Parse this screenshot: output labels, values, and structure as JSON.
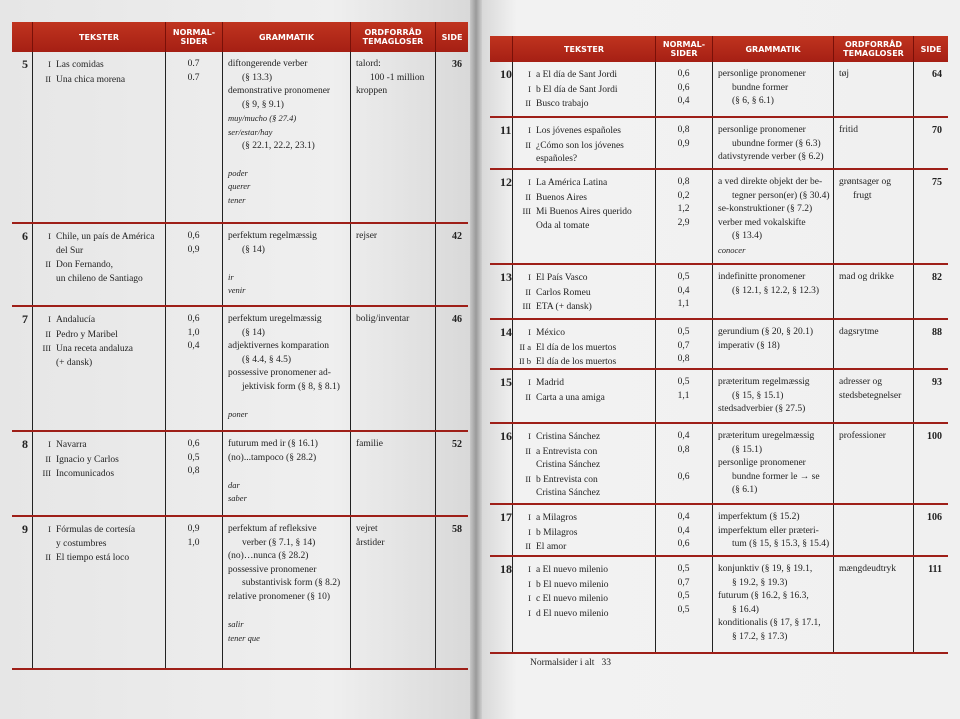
{
  "headers": {
    "tekster": "TEKSTER",
    "normal": "NORMAL-\nSIDER",
    "grammatik": "GRAMMATIK",
    "ordforrad": "ORDFORRÅD\nTEMAGLOSER",
    "side": "SIDE"
  },
  "left_rows": [
    {
      "num": "5",
      "texts": [
        [
          "I",
          "Las comidas"
        ],
        [
          "II",
          "Una chica morena"
        ]
      ],
      "normal": [
        "0.7",
        "0.7"
      ],
      "grammar": [
        {
          "t": "diftongerende verber"
        },
        {
          "t": "(§ 13.3)",
          "ind": true
        },
        {
          "t": "demonstrative pronomener"
        },
        {
          "t": "(§ 9, § 9.1)",
          "ind": true
        },
        {
          "t": "muy/mucho (§ 27.4)",
          "i": true
        },
        {
          "t": "ser/estar/hay",
          "i": true
        },
        {
          "t": "(§ 22.1, 22.2, 23.1)",
          "ind": true
        },
        {
          "t": ""
        },
        {
          "t": "poder",
          "i": true
        },
        {
          "t": "querer",
          "i": true
        },
        {
          "t": "tener",
          "i": true
        }
      ],
      "vocab": [
        {
          "t": "talord:"
        },
        {
          "t": "100 -1 million",
          "ind": true
        },
        {
          "t": "kroppen"
        }
      ],
      "side": "36"
    },
    {
      "num": "6",
      "texts": [
        [
          "I",
          "Chile, un país de América"
        ],
        [
          "",
          "del Sur"
        ],
        [
          "II",
          "Don Fernando,"
        ],
        [
          "",
          "un chileno de Santiago"
        ]
      ],
      "normal": [
        "0,6",
        "0,9"
      ],
      "grammar": [
        {
          "t": "perfektum regelmæssig"
        },
        {
          "t": "(§ 14)",
          "ind": true
        },
        {
          "t": ""
        },
        {
          "t": "ir",
          "i": true
        },
        {
          "t": "venir",
          "i": true
        }
      ],
      "vocab": [
        {
          "t": "rejser"
        }
      ],
      "side": "42"
    },
    {
      "num": "7",
      "texts": [
        [
          "I",
          "Andalucía"
        ],
        [
          "II",
          "Pedro y Maribel"
        ],
        [
          "III",
          "Una receta andaluza"
        ],
        [
          "",
          "(+ dansk)"
        ]
      ],
      "normal": [
        "0,6",
        "1,0",
        "0,4"
      ],
      "grammar": [
        {
          "t": "perfektum  uregelmæssig"
        },
        {
          "t": "(§ 14)",
          "ind": true
        },
        {
          "t": "adjektivernes komparation"
        },
        {
          "t": "(§ 4.4, § 4.5)",
          "ind": true
        },
        {
          "t": "possessive pronomener ad-"
        },
        {
          "t": "jektivisk form (§ 8, § 8.1)",
          "ind": true
        },
        {
          "t": ""
        },
        {
          "t": "poner",
          "i": true
        }
      ],
      "vocab": [
        {
          "t": "bolig/inventar"
        }
      ],
      "side": "46"
    },
    {
      "num": "8",
      "texts": [
        [
          "I",
          "Navarra"
        ],
        [
          "II",
          "Ignacio y Carlos"
        ],
        [
          "III",
          "Incomunicados"
        ]
      ],
      "normal": [
        "0,6",
        "0,5",
        "0,8"
      ],
      "grammar": [
        {
          "t": "futurum med ir (§ 16.1)"
        },
        {
          "t": "(no)...tampoco (§ 28.2)"
        },
        {
          "t": ""
        },
        {
          "t": "dar",
          "i": true
        },
        {
          "t": "saber",
          "i": true
        }
      ],
      "vocab": [
        {
          "t": "familie"
        }
      ],
      "side": "52"
    },
    {
      "num": "9",
      "texts": [
        [
          "I",
          "Fórmulas de cortesía"
        ],
        [
          "",
          "y costumbres"
        ],
        [
          "II",
          "El tiempo está loco"
        ]
      ],
      "normal": [
        "0,9",
        "1,0"
      ],
      "grammar": [
        {
          "t": "perfektum af refleksive"
        },
        {
          "t": "verber (§ 7.1, § 14)",
          "ind": true
        },
        {
          "t": "(no)…nunca (§ 28.2)"
        },
        {
          "t": "possessive pronomener"
        },
        {
          "t": "substantivisk form (§ 8.2)",
          "ind": true
        },
        {
          "t": "relative pronomener (§ 10)"
        },
        {
          "t": ""
        },
        {
          "t": "salir",
          "i": true
        },
        {
          "t": "tener que",
          "i": true
        }
      ],
      "vocab": [
        {
          "t": "vejret"
        },
        {
          "t": "årstider"
        }
      ],
      "side": "58"
    }
  ],
  "right_rows": [
    {
      "num": "10",
      "texts": [
        [
          "I",
          "a  El día de Sant Jordi"
        ],
        [
          "I",
          "b  El día de Sant Jordi"
        ],
        [
          "II",
          "Busco trabajo"
        ]
      ],
      "normal": [
        "0,6",
        "0,6",
        "0,4"
      ],
      "grammar": [
        {
          "t": "personlige pronomener"
        },
        {
          "t": "bundne former",
          "ind": true
        },
        {
          "t": "(§ 6, § 6.1)",
          "ind": true
        }
      ],
      "vocab": [
        {
          "t": "tøj"
        }
      ],
      "side": "64"
    },
    {
      "num": "11",
      "texts": [
        [
          "I",
          "Los jóvenes españoles"
        ],
        [
          "II",
          "¿Cómo son los jóvenes"
        ],
        [
          "",
          "españoles?"
        ]
      ],
      "normal": [
        "0,8",
        "0,9"
      ],
      "grammar": [
        {
          "t": "personlige pronomener"
        },
        {
          "t": "ubundne former (§ 6.3)",
          "ind": true
        },
        {
          "t": "dativstyrende verber (§ 6.2)"
        }
      ],
      "vocab": [
        {
          "t": "fritid"
        }
      ],
      "side": "70"
    },
    {
      "num": "12",
      "texts": [
        [
          "I",
          "La América Latina"
        ],
        [
          "II",
          "Buenos Aires"
        ],
        [
          "III",
          "Mi Buenos Aires querido"
        ],
        [
          "",
          "Oda al tomate"
        ]
      ],
      "normal": [
        "0,8",
        "0,2",
        "1,2",
        "2,9"
      ],
      "grammar": [
        {
          "t": "a ved direkte objekt der be-"
        },
        {
          "t": "tegner person(er) (§ 30.4)",
          "ind": true
        },
        {
          "t": "se-konstruktioner (§ 7.2)"
        },
        {
          "t": "verber med vokalskifte"
        },
        {
          "t": "(§ 13.4)",
          "ind": true
        },
        {
          "t": "conocer",
          "i": true
        }
      ],
      "vocab": [
        {
          "t": "grøntsager og"
        },
        {
          "t": "frugt",
          "ind": true
        }
      ],
      "side": "75"
    },
    {
      "num": "13",
      "texts": [
        [
          "I",
          "El País Vasco"
        ],
        [
          "II",
          "Carlos Romeu"
        ],
        [
          "III",
          "ETA (+ dansk)"
        ]
      ],
      "normal": [
        "0,5",
        "0,4",
        "1,1"
      ],
      "grammar": [
        {
          "t": "indefinitte pronomener"
        },
        {
          "t": "(§ 12.1, § 12.2, § 12.3)",
          "ind": true
        }
      ],
      "vocab": [
        {
          "t": "mad og drikke"
        }
      ],
      "side": "82"
    },
    {
      "num": "14",
      "texts": [
        [
          "I",
          "México"
        ],
        [
          "II a",
          "El día de los muertos"
        ],
        [
          "II b",
          "El día de los muertos"
        ]
      ],
      "normal": [
        "0,5",
        "0,7",
        "0,8"
      ],
      "grammar": [
        {
          "t": "gerundium (§ 20, § 20.1)"
        },
        {
          "t": "imperativ (§ 18)"
        }
      ],
      "vocab": [
        {
          "t": "dagsrytme"
        }
      ],
      "side": "88"
    },
    {
      "num": "15",
      "texts": [
        [
          "I",
          "Madrid"
        ],
        [
          "II",
          "Carta a una amiga"
        ]
      ],
      "normal": [
        "0,5",
        "1,1"
      ],
      "grammar": [
        {
          "t": "præteritum regelmæssig"
        },
        {
          "t": "(§ 15, § 15.1)",
          "ind": true
        },
        {
          "t": "stedsadverbier (§ 27.5)"
        }
      ],
      "vocab": [
        {
          "t": "adresser og"
        },
        {
          "t": "stedsbetegnelser"
        }
      ],
      "side": "93"
    },
    {
      "num": "16",
      "texts": [
        [
          "I",
          "Cristina Sánchez"
        ],
        [
          "II",
          "a  Entrevista con"
        ],
        [
          "",
          "Cristina Sánchez"
        ],
        [
          "II",
          "b  Entrevista con"
        ],
        [
          "",
          "Cristina Sánchez"
        ]
      ],
      "normal": [
        "0,4",
        "0,8",
        "",
        "0,6"
      ],
      "grammar": [
        {
          "t": "præteritum uregelmæssig"
        },
        {
          "t": "(§ 15.1)",
          "ind": true
        },
        {
          "t": "personlige pronomener"
        },
        {
          "t": "bundne former le → se",
          "ind": true
        },
        {
          "t": "(§ 6.1)",
          "ind": true
        }
      ],
      "vocab": [
        {
          "t": "professioner"
        }
      ],
      "side": "100"
    },
    {
      "num": "17",
      "texts": [
        [
          "I",
          "a  Milagros"
        ],
        [
          "I",
          "b  Milagros"
        ],
        [
          "II",
          "El amor"
        ]
      ],
      "normal": [
        "0,4",
        "0,4",
        "0,6"
      ],
      "grammar": [
        {
          "t": "imperfektum (§ 15.2)"
        },
        {
          "t": "imperfektum eller præteri-"
        },
        {
          "t": "tum (§ 15, § 15.3, § 15.4)",
          "ind": true
        }
      ],
      "vocab": [],
      "side": "106"
    },
    {
      "num": "18",
      "texts": [
        [
          "I",
          "a  El nuevo milenio"
        ],
        [
          "I",
          "b  El nuevo milenio"
        ],
        [
          "I",
          "c  El nuevo milenio"
        ],
        [
          "I",
          "d  El nuevo milenio"
        ]
      ],
      "normal": [
        "0,5",
        "0,7",
        "0,5",
        "0,5"
      ],
      "grammar": [
        {
          "t": "konjunktiv (§ 19, § 19.1,"
        },
        {
          "t": "§ 19.2, § 19.3)",
          "ind": true
        },
        {
          "t": "futurum (§ 16.2, § 16.3,"
        },
        {
          "t": "§ 16.4)",
          "ind": true
        },
        {
          "t": "konditionalis (§ 17, § 17.1,"
        },
        {
          "t": "§ 17.2, § 17.3)",
          "ind": true
        }
      ],
      "vocab": [
        {
          "t": "mængdeudtryk"
        }
      ],
      "side": "111"
    }
  ],
  "footer": {
    "label": "Normalsider i alt",
    "total": "33"
  },
  "colors": {
    "header": "#b02a1a",
    "rule": "#9e1f18"
  }
}
